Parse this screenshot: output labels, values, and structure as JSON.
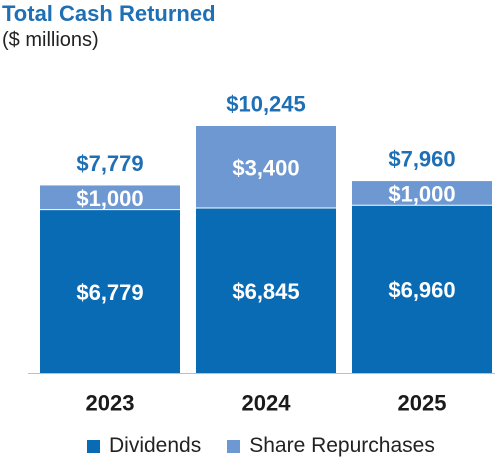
{
  "chart_data": {
    "type": "bar",
    "stacked": true,
    "title": "Total Cash Returned",
    "subtitle": "($ millions)",
    "categories": [
      "2023",
      "2024",
      "2025"
    ],
    "series": [
      {
        "name": "Dividends",
        "values": [
          6779,
          6845,
          6960
        ],
        "labels": [
          "$6,779",
          "$6,845",
          "$6,960"
        ],
        "color": "#0a6bb5"
      },
      {
        "name": "Share Repurchases",
        "values": [
          1000,
          3400,
          1000
        ],
        "labels": [
          "$1,000",
          "$3,400",
          "$1,000"
        ],
        "color": "#6d98d2"
      }
    ],
    "totals": [
      7779,
      10245,
      7960
    ],
    "total_labels": [
      "$7,779",
      "$10,245",
      "$7,960"
    ],
    "total_label_color": "#1f6fb5",
    "ylim": [
      0,
      10245
    ],
    "grid": false,
    "legend_position": "bottom"
  }
}
